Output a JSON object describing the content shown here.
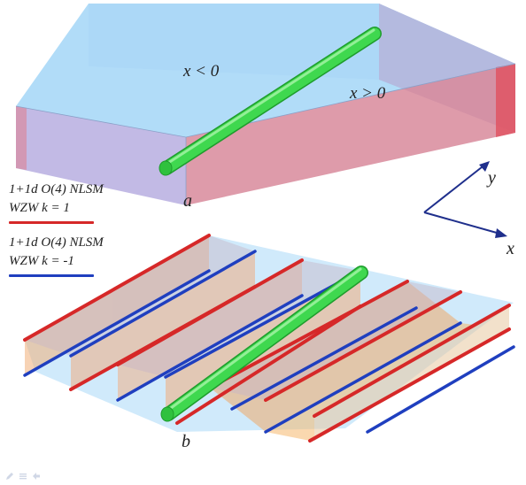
{
  "colors": {
    "red": "#d62828",
    "blue": "#1f3fbf",
    "green": "#39d84a",
    "slab": "#9ed3f5"
  },
  "top_panel": {
    "region_left": "x < 0",
    "region_right": "x > 0",
    "caption": "a"
  },
  "bottom_panel": {
    "caption": "b"
  },
  "axes": {
    "y_label": "y",
    "x_label": "x"
  },
  "legend": {
    "item_red": {
      "line1": "1+1d O(4) NLSM",
      "line2": "WZW k = 1"
    },
    "item_blue": {
      "line1": "1+1d O(4) NLSM",
      "line2": "WZW k = -1"
    }
  },
  "toolbar_icons": [
    "pencil-icon",
    "menu-icon",
    "share-icon"
  ]
}
